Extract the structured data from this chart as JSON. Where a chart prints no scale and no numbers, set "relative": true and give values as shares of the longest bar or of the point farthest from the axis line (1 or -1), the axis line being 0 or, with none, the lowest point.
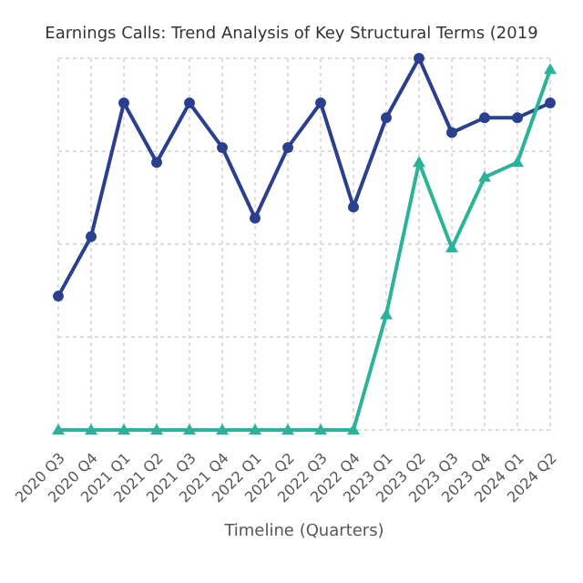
{
  "chart_data": {
    "type": "line",
    "title": "Earnings Calls: Trend Analysis of Key Structural Terms (2019",
    "xlabel": "Timeline (Quarters)",
    "relative": true,
    "grid": true,
    "legend": false,
    "categories": [
      "2020 Q3",
      "2020 Q4",
      "2021 Q1",
      "2021 Q2",
      "2021 Q3",
      "2021 Q4",
      "2022 Q1",
      "2022 Q2",
      "2022 Q3",
      "2022 Q4",
      "2023 Q1",
      "2023 Q2",
      "2023 Q3",
      "2023 Q4",
      "2024 Q1",
      "2024 Q2"
    ],
    "series": [
      {
        "color": "#2b3f8f",
        "marker": "circle",
        "values": [
          0.36,
          0.52,
          0.88,
          0.72,
          0.88,
          0.76,
          0.57,
          0.76,
          0.88,
          0.6,
          0.84,
          1,
          0.8,
          0.84,
          0.84,
          0.88
        ]
      },
      {
        "color": "#2bb39a",
        "marker": "triangle",
        "values": [
          0,
          0,
          0,
          0,
          0,
          0,
          0,
          0,
          0,
          0,
          0.31,
          0.72,
          0.49,
          0.68,
          0.72,
          0.97
        ]
      }
    ]
  }
}
